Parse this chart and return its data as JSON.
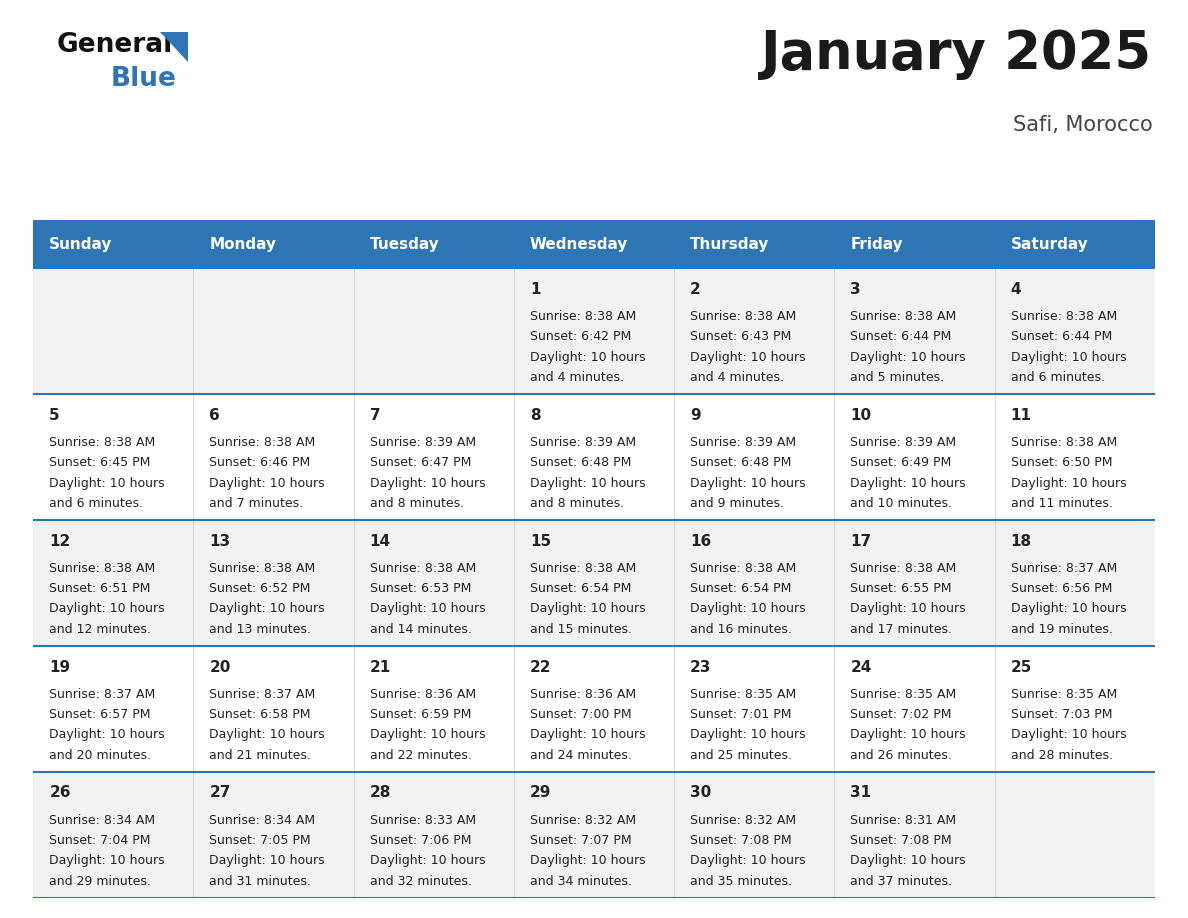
{
  "title": "January 2025",
  "subtitle": "Safi, Morocco",
  "header_color": "#2E75B6",
  "header_text_color": "#FFFFFF",
  "cell_bg_odd": "#F2F2F2",
  "cell_bg_even": "#FFFFFF",
  "cell_border_color": "#2E75B6",
  "day_names": [
    "Sunday",
    "Monday",
    "Tuesday",
    "Wednesday",
    "Thursday",
    "Friday",
    "Saturday"
  ],
  "text_color": "#222222",
  "days": [
    {
      "day": 1,
      "col": 3,
      "row": 0,
      "sunrise": "8:38 AM",
      "sunset": "6:42 PM",
      "daylight_line1": "Daylight: 10 hours",
      "daylight_line2": "and 4 minutes."
    },
    {
      "day": 2,
      "col": 4,
      "row": 0,
      "sunrise": "8:38 AM",
      "sunset": "6:43 PM",
      "daylight_line1": "Daylight: 10 hours",
      "daylight_line2": "and 4 minutes."
    },
    {
      "day": 3,
      "col": 5,
      "row": 0,
      "sunrise": "8:38 AM",
      "sunset": "6:44 PM",
      "daylight_line1": "Daylight: 10 hours",
      "daylight_line2": "and 5 minutes."
    },
    {
      "day": 4,
      "col": 6,
      "row": 0,
      "sunrise": "8:38 AM",
      "sunset": "6:44 PM",
      "daylight_line1": "Daylight: 10 hours",
      "daylight_line2": "and 6 minutes."
    },
    {
      "day": 5,
      "col": 0,
      "row": 1,
      "sunrise": "8:38 AM",
      "sunset": "6:45 PM",
      "daylight_line1": "Daylight: 10 hours",
      "daylight_line2": "and 6 minutes."
    },
    {
      "day": 6,
      "col": 1,
      "row": 1,
      "sunrise": "8:38 AM",
      "sunset": "6:46 PM",
      "daylight_line1": "Daylight: 10 hours",
      "daylight_line2": "and 7 minutes."
    },
    {
      "day": 7,
      "col": 2,
      "row": 1,
      "sunrise": "8:39 AM",
      "sunset": "6:47 PM",
      "daylight_line1": "Daylight: 10 hours",
      "daylight_line2": "and 8 minutes."
    },
    {
      "day": 8,
      "col": 3,
      "row": 1,
      "sunrise": "8:39 AM",
      "sunset": "6:48 PM",
      "daylight_line1": "Daylight: 10 hours",
      "daylight_line2": "and 8 minutes."
    },
    {
      "day": 9,
      "col": 4,
      "row": 1,
      "sunrise": "8:39 AM",
      "sunset": "6:48 PM",
      "daylight_line1": "Daylight: 10 hours",
      "daylight_line2": "and 9 minutes."
    },
    {
      "day": 10,
      "col": 5,
      "row": 1,
      "sunrise": "8:39 AM",
      "sunset": "6:49 PM",
      "daylight_line1": "Daylight: 10 hours",
      "daylight_line2": "and 10 minutes."
    },
    {
      "day": 11,
      "col": 6,
      "row": 1,
      "sunrise": "8:38 AM",
      "sunset": "6:50 PM",
      "daylight_line1": "Daylight: 10 hours",
      "daylight_line2": "and 11 minutes."
    },
    {
      "day": 12,
      "col": 0,
      "row": 2,
      "sunrise": "8:38 AM",
      "sunset": "6:51 PM",
      "daylight_line1": "Daylight: 10 hours",
      "daylight_line2": "and 12 minutes."
    },
    {
      "day": 13,
      "col": 1,
      "row": 2,
      "sunrise": "8:38 AM",
      "sunset": "6:52 PM",
      "daylight_line1": "Daylight: 10 hours",
      "daylight_line2": "and 13 minutes."
    },
    {
      "day": 14,
      "col": 2,
      "row": 2,
      "sunrise": "8:38 AM",
      "sunset": "6:53 PM",
      "daylight_line1": "Daylight: 10 hours",
      "daylight_line2": "and 14 minutes."
    },
    {
      "day": 15,
      "col": 3,
      "row": 2,
      "sunrise": "8:38 AM",
      "sunset": "6:54 PM",
      "daylight_line1": "Daylight: 10 hours",
      "daylight_line2": "and 15 minutes."
    },
    {
      "day": 16,
      "col": 4,
      "row": 2,
      "sunrise": "8:38 AM",
      "sunset": "6:54 PM",
      "daylight_line1": "Daylight: 10 hours",
      "daylight_line2": "and 16 minutes."
    },
    {
      "day": 17,
      "col": 5,
      "row": 2,
      "sunrise": "8:38 AM",
      "sunset": "6:55 PM",
      "daylight_line1": "Daylight: 10 hours",
      "daylight_line2": "and 17 minutes."
    },
    {
      "day": 18,
      "col": 6,
      "row": 2,
      "sunrise": "8:37 AM",
      "sunset": "6:56 PM",
      "daylight_line1": "Daylight: 10 hours",
      "daylight_line2": "and 19 minutes."
    },
    {
      "day": 19,
      "col": 0,
      "row": 3,
      "sunrise": "8:37 AM",
      "sunset": "6:57 PM",
      "daylight_line1": "Daylight: 10 hours",
      "daylight_line2": "and 20 minutes."
    },
    {
      "day": 20,
      "col": 1,
      "row": 3,
      "sunrise": "8:37 AM",
      "sunset": "6:58 PM",
      "daylight_line1": "Daylight: 10 hours",
      "daylight_line2": "and 21 minutes."
    },
    {
      "day": 21,
      "col": 2,
      "row": 3,
      "sunrise": "8:36 AM",
      "sunset": "6:59 PM",
      "daylight_line1": "Daylight: 10 hours",
      "daylight_line2": "and 22 minutes."
    },
    {
      "day": 22,
      "col": 3,
      "row": 3,
      "sunrise": "8:36 AM",
      "sunset": "7:00 PM",
      "daylight_line1": "Daylight: 10 hours",
      "daylight_line2": "and 24 minutes."
    },
    {
      "day": 23,
      "col": 4,
      "row": 3,
      "sunrise": "8:35 AM",
      "sunset": "7:01 PM",
      "daylight_line1": "Daylight: 10 hours",
      "daylight_line2": "and 25 minutes."
    },
    {
      "day": 24,
      "col": 5,
      "row": 3,
      "sunrise": "8:35 AM",
      "sunset": "7:02 PM",
      "daylight_line1": "Daylight: 10 hours",
      "daylight_line2": "and 26 minutes."
    },
    {
      "day": 25,
      "col": 6,
      "row": 3,
      "sunrise": "8:35 AM",
      "sunset": "7:03 PM",
      "daylight_line1": "Daylight: 10 hours",
      "daylight_line2": "and 28 minutes."
    },
    {
      "day": 26,
      "col": 0,
      "row": 4,
      "sunrise": "8:34 AM",
      "sunset": "7:04 PM",
      "daylight_line1": "Daylight: 10 hours",
      "daylight_line2": "and 29 minutes."
    },
    {
      "day": 27,
      "col": 1,
      "row": 4,
      "sunrise": "8:34 AM",
      "sunset": "7:05 PM",
      "daylight_line1": "Daylight: 10 hours",
      "daylight_line2": "and 31 minutes."
    },
    {
      "day": 28,
      "col": 2,
      "row": 4,
      "sunrise": "8:33 AM",
      "sunset": "7:06 PM",
      "daylight_line1": "Daylight: 10 hours",
      "daylight_line2": "and 32 minutes."
    },
    {
      "day": 29,
      "col": 3,
      "row": 4,
      "sunrise": "8:32 AM",
      "sunset": "7:07 PM",
      "daylight_line1": "Daylight: 10 hours",
      "daylight_line2": "and 34 minutes."
    },
    {
      "day": 30,
      "col": 4,
      "row": 4,
      "sunrise": "8:32 AM",
      "sunset": "7:08 PM",
      "daylight_line1": "Daylight: 10 hours",
      "daylight_line2": "and 35 minutes."
    },
    {
      "day": 31,
      "col": 5,
      "row": 4,
      "sunrise": "8:31 AM",
      "sunset": "7:08 PM",
      "daylight_line1": "Daylight: 10 hours",
      "daylight_line2": "and 37 minutes."
    }
  ],
  "logo_general_color": "#111111",
  "logo_blue_color": "#2E75B6",
  "logo_triangle_color": "#2E75B6",
  "title_fontsize": 38,
  "subtitle_fontsize": 15,
  "header_fontsize": 11,
  "day_number_fontsize": 11,
  "cell_text_fontsize": 9
}
